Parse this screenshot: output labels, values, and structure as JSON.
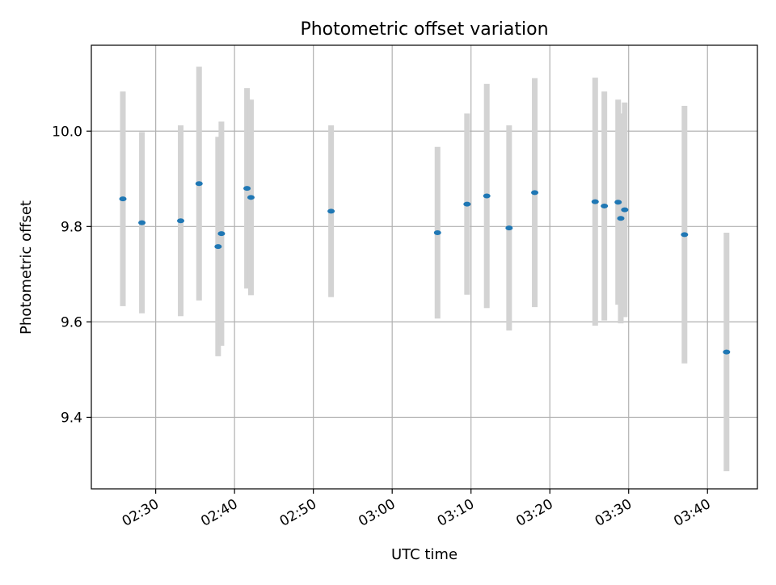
{
  "chart_data": {
    "type": "scatter",
    "title": "Photometric offset variation",
    "xlabel": "UTC time",
    "ylabel": "Photometric offset",
    "x_unit": "UTC time of day",
    "xlim": [
      "02:21:50",
      "03:46:20"
    ],
    "ylim": [
      9.25,
      10.18
    ],
    "x_ticks": [
      "02:30",
      "02:40",
      "02:50",
      "03:00",
      "03:10",
      "03:20",
      "03:30",
      "03:40"
    ],
    "y_ticks": [
      9.4,
      9.6,
      9.8,
      10.0
    ],
    "y_tick_labels": [
      "9.4",
      "9.6",
      "9.8",
      "10.0"
    ],
    "grid": true,
    "colors": {
      "point": "#1f77b4",
      "errorbar": "#d3d3d3",
      "grid": "#b0b0b0"
    },
    "series": [
      {
        "points": [
          {
            "x": "02:25:50",
            "y": 9.858,
            "yerr": 0.225
          },
          {
            "x": "02:28:15",
            "y": 9.808,
            "yerr": 0.19
          },
          {
            "x": "02:33:10",
            "y": 9.812,
            "yerr": 0.2
          },
          {
            "x": "02:35:30",
            "y": 9.89,
            "yerr": 0.245
          },
          {
            "x": "02:37:55",
            "y": 9.758,
            "yerr": 0.23
          },
          {
            "x": "02:38:20",
            "y": 9.785,
            "yerr": 0.235
          },
          {
            "x": "02:41:35",
            "y": 9.88,
            "yerr": 0.21
          },
          {
            "x": "02:42:05",
            "y": 9.861,
            "yerr": 0.205
          },
          {
            "x": "02:52:15",
            "y": 9.832,
            "yerr": 0.18
          },
          {
            "x": "03:05:45",
            "y": 9.787,
            "yerr": 0.18
          },
          {
            "x": "03:09:30",
            "y": 9.847,
            "yerr": 0.19
          },
          {
            "x": "03:12:00",
            "y": 9.864,
            "yerr": 0.235
          },
          {
            "x": "03:14:50",
            "y": 9.797,
            "yerr": 0.215
          },
          {
            "x": "03:18:05",
            "y": 9.871,
            "yerr": 0.24
          },
          {
            "x": "03:25:45",
            "y": 9.852,
            "yerr": 0.26
          },
          {
            "x": "03:26:55",
            "y": 9.843,
            "yerr": 0.24
          },
          {
            "x": "03:28:40",
            "y": 9.851,
            "yerr": 0.215
          },
          {
            "x": "03:29:00",
            "y": 9.817,
            "yerr": 0.22
          },
          {
            "x": "03:29:30",
            "y": 9.835,
            "yerr": 0.225
          },
          {
            "x": "03:37:05",
            "y": 9.783,
            "yerr": 0.27
          },
          {
            "x": "03:42:25",
            "y": 9.537,
            "yerr": 0.25
          }
        ]
      }
    ]
  }
}
